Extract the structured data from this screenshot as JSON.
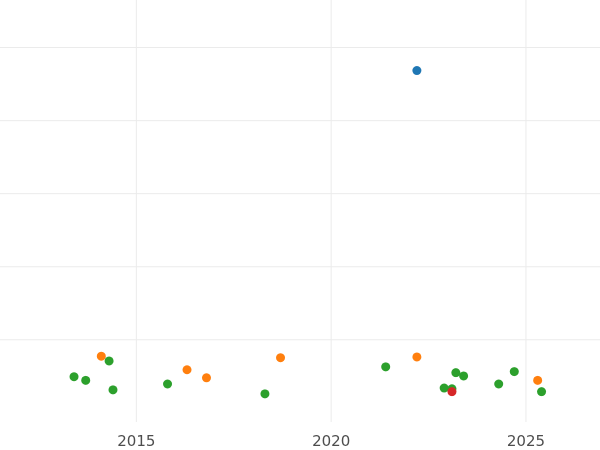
{
  "chart_data": {
    "type": "scatter",
    "title": "",
    "xlabel": "",
    "ylabel": "",
    "xlim": [
      2011.5,
      2026.9
    ],
    "ylim": [
      -0.025,
      1.13
    ],
    "x_ticks": [
      2015,
      2020,
      2025
    ],
    "x_tick_labels": [
      "2015",
      "2020",
      "2025"
    ],
    "y_gridlines": [
      0.2,
      0.4,
      0.6,
      0.8,
      1.0
    ],
    "grid": true,
    "legend": "none",
    "colors": {
      "blue": "#1f77b4",
      "orange": "#ff7f0e",
      "green": "#2ca02c",
      "red": "#d62728",
      "grid": "#ebebeb",
      "tick_text": "#4d4d4d"
    },
    "series": [
      {
        "color": "blue",
        "points": [
          {
            "x": 2022.2,
            "y": 0.937
          }
        ]
      },
      {
        "color": "orange",
        "points": [
          {
            "x": 2014.1,
            "y": 0.155
          },
          {
            "x": 2016.3,
            "y": 0.118
          },
          {
            "x": 2016.8,
            "y": 0.096
          },
          {
            "x": 2018.7,
            "y": 0.151
          },
          {
            "x": 2022.2,
            "y": 0.153
          },
          {
            "x": 2025.3,
            "y": 0.089
          }
        ]
      },
      {
        "color": "green",
        "points": [
          {
            "x": 2013.4,
            "y": 0.099
          },
          {
            "x": 2013.7,
            "y": 0.089
          },
          {
            "x": 2014.3,
            "y": 0.142
          },
          {
            "x": 2014.4,
            "y": 0.063
          },
          {
            "x": 2015.8,
            "y": 0.079
          },
          {
            "x": 2018.3,
            "y": 0.052
          },
          {
            "x": 2021.4,
            "y": 0.126
          },
          {
            "x": 2022.9,
            "y": 0.068
          },
          {
            "x": 2023.1,
            "y": 0.066
          },
          {
            "x": 2023.2,
            "y": 0.11
          },
          {
            "x": 2023.4,
            "y": 0.101
          },
          {
            "x": 2024.3,
            "y": 0.079
          },
          {
            "x": 2024.7,
            "y": 0.113
          },
          {
            "x": 2025.4,
            "y": 0.058
          }
        ]
      },
      {
        "color": "red",
        "points": [
          {
            "x": 2023.1,
            "y": 0.058
          }
        ]
      }
    ]
  }
}
